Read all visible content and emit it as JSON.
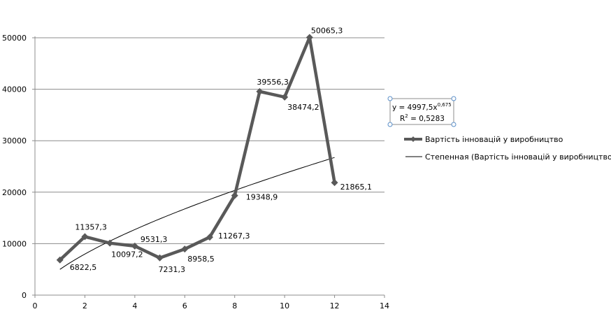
{
  "chart_data": {
    "type": "line",
    "title": "",
    "xlabel": "",
    "ylabel": "",
    "xlim": [
      0,
      14
    ],
    "ylim": [
      0,
      50000
    ],
    "x_ticks": [
      0,
      2,
      4,
      6,
      8,
      10,
      12,
      14
    ],
    "y_ticks": [
      0,
      10000,
      20000,
      30000,
      40000,
      50000
    ],
    "x_tick_labels": [
      "0",
      "2",
      "4",
      "6",
      "8",
      "10",
      "12",
      "14"
    ],
    "y_tick_labels": [
      "0",
      "10000",
      "20000",
      "30000",
      "40000",
      "50000"
    ],
    "grid": "horizontal",
    "legend_position": "right",
    "series": [
      {
        "name": "Вартість інновацій  у виробництво",
        "color": "#595959",
        "marker": "diamond",
        "x": [
          1,
          2,
          3,
          4,
          5,
          6,
          7,
          8,
          9,
          10,
          11,
          12
        ],
        "values": [
          6822.5,
          11357.3,
          10097.2,
          9531.3,
          7231.3,
          8958.5,
          11267.3,
          19348.9,
          39556.3,
          38474.2,
          50065.3,
          21865.1
        ],
        "labels": [
          "6822,5",
          "11357,3",
          "10097,2",
          "9531,3",
          "7231,3",
          "8958,5",
          "11267,3",
          "19348,9",
          "39556,3",
          "38474,2",
          "50065,3",
          "21865,1"
        ]
      }
    ],
    "trendline": {
      "name": "Степенная (Вартість інновацій  у виробництво)",
      "type": "power",
      "coefficient": 4997.5,
      "exponent": 0.675,
      "x_range": [
        1,
        12
      ],
      "color": "#000000",
      "equation_prefix": "y = 4997,5x",
      "equation_exponent": "0,675",
      "r2_prefix": "R",
      "r2_sup": "2",
      "r2_suffix": " = 0,5283"
    }
  }
}
